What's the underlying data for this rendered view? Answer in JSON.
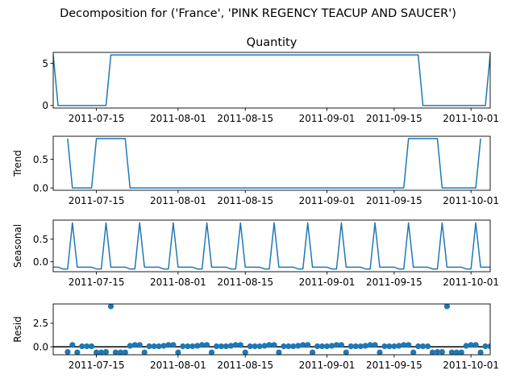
{
  "figure": {
    "suptitle": "Decomposition for ('France', 'PINK REGENCY TEACUP AND SAUCER')"
  },
  "chart_data": [
    {
      "type": "line",
      "title": "Quantity",
      "ylabel": "",
      "color": "#1f77b4",
      "x_start": "2011-07-06",
      "x_end": "2011-10-05",
      "ylim": [
        -0.3,
        6.3
      ],
      "yticks": [
        0,
        5
      ],
      "ytick_labels": [
        "0",
        "5"
      ],
      "xticks": [
        "2011-07-15",
        "2011-08-01",
        "2011-08-15",
        "2011-09-01",
        "2011-09-15",
        "2011-10-01"
      ],
      "x": [
        "2011-07-06",
        "2011-07-07",
        "2011-07-17",
        "2011-07-18",
        "2011-09-20",
        "2011-09-21",
        "2011-10-04",
        "2011-10-05"
      ],
      "y": [
        6,
        0,
        0,
        6,
        6,
        0,
        0,
        6
      ]
    },
    {
      "type": "line",
      "title": "",
      "ylabel": "Trend",
      "color": "#1f77b4",
      "x_start": "2011-07-06",
      "x_end": "2011-10-05",
      "ylim": [
        -0.04,
        0.9
      ],
      "yticks": [
        0,
        0.5
      ],
      "ytick_labels": [
        "0.0",
        "0.5"
      ],
      "xticks": [
        "2011-07-15",
        "2011-08-01",
        "2011-08-15",
        "2011-09-01",
        "2011-09-15",
        "2011-10-01"
      ],
      "x": [
        "2011-07-09",
        "2011-07-10",
        "2011-07-14",
        "2011-07-15",
        "2011-07-21",
        "2011-07-22",
        "2011-09-17",
        "2011-09-18",
        "2011-09-24",
        "2011-09-25",
        "2011-10-02",
        "2011-10-03"
      ],
      "y": [
        0.86,
        0,
        0,
        0.86,
        0.86,
        0,
        0,
        0.86,
        0.86,
        0,
        0,
        0.86
      ]
    },
    {
      "type": "line",
      "title": "",
      "ylabel": "Seasonal",
      "color": "#1f77b4",
      "x_start": "2011-07-06",
      "x_end": "2011-10-05",
      "ylim": [
        -0.22,
        0.92
      ],
      "yticks": [
        0,
        0.5
      ],
      "ytick_labels": [
        "0.0",
        "0.5"
      ],
      "xticks": [
        "2011-07-15",
        "2011-08-01",
        "2011-08-15",
        "2011-09-01",
        "2011-09-15",
        "2011-10-01"
      ],
      "pattern": [
        -0.12,
        -0.12,
        -0.16,
        -0.16,
        0.86,
        -0.12,
        -0.12
      ],
      "pattern_start": "2011-07-06"
    },
    {
      "type": "scatter",
      "title": "",
      "ylabel": "Resid",
      "color": "#1f77b4",
      "x_start": "2011-07-06",
      "x_end": "2011-10-05",
      "ylim": [
        -0.85,
        4.55
      ],
      "yticks": [
        0,
        2.5
      ],
      "ytick_labels": [
        "0.0",
        "2.5"
      ],
      "xticks": [
        "2011-07-15",
        "2011-08-01",
        "2011-08-15",
        "2011-09-01",
        "2011-09-15",
        "2011-10-01"
      ],
      "zero_line": true,
      "x_start_data": "2011-07-09",
      "y": [
        -0.55,
        0.2,
        -0.6,
        0.05,
        0.05,
        0.05,
        -0.6,
        -0.6,
        -0.55,
        4.3,
        -0.6,
        -0.6,
        -0.6,
        0.1,
        0.2,
        0.2,
        -0.6,
        0.05,
        0.05,
        0.05,
        0.1,
        0.2,
        0.2,
        -0.6,
        0.05,
        0.05,
        0.05,
        0.1,
        0.2,
        0.2,
        -0.6,
        0.05,
        0.05,
        0.05,
        0.1,
        0.2,
        0.2,
        -0.6,
        0.05,
        0.05,
        0.05,
        0.1,
        0.2,
        0.2,
        -0.6,
        0.05,
        0.05,
        0.05,
        0.1,
        0.2,
        0.2,
        -0.6,
        0.05,
        0.05,
        0.05,
        0.1,
        0.2,
        0.2,
        -0.6,
        0.05,
        0.05,
        0.05,
        0.1,
        0.2,
        0.2,
        -0.6,
        0.05,
        0.05,
        0.05,
        0.1,
        0.2,
        0.2,
        -0.6,
        0.05,
        0.05,
        0.05,
        -0.6,
        -0.55,
        -0.55,
        4.3,
        -0.6,
        -0.6,
        -0.6,
        0.1,
        0.2,
        0.2,
        -0.6,
        0.05,
        0.05,
        0.05,
        0.1,
        0.2,
        -0.55
      ]
    }
  ]
}
